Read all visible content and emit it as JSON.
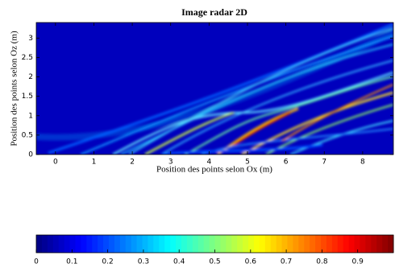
{
  "chart_data": {
    "type": "heatmap",
    "title": "Image radar 2D",
    "x_label": "Position des points selon Ox (m)",
    "y_label": "Position des points selon Oz (m)",
    "colormap": "jet",
    "xlim": [
      -0.5,
      8.8
    ],
    "xticks": [
      0,
      1,
      2,
      3,
      4,
      5,
      6,
      7,
      8
    ],
    "ylim": [
      0,
      3.4
    ],
    "yticks": [
      0,
      0.5,
      1,
      1.5,
      2,
      2.5,
      3
    ],
    "clim": [
      0,
      1
    ],
    "cticks": [
      0,
      0.1,
      0.2,
      0.3,
      0.4,
      0.5,
      0.6,
      0.7,
      0.8,
      0.9
    ]
  }
}
